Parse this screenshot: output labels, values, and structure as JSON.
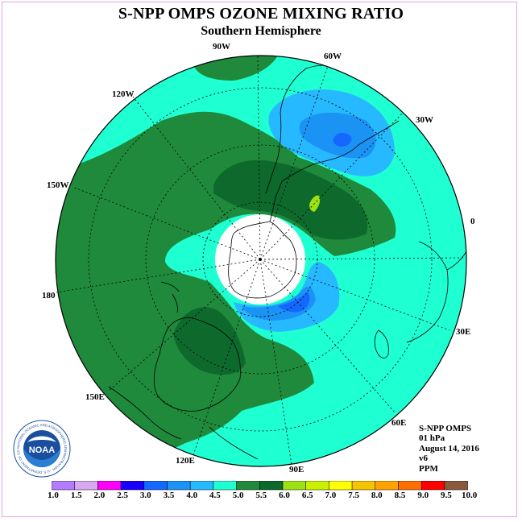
{
  "header": {
    "title": "S-NPP OMPS OZONE MIXING RATIO",
    "subtitle": "Southern Hemisphere"
  },
  "map": {
    "projection": "polar stereographic, South Pole centered",
    "longitude_labels": [
      {
        "key": "90W",
        "text": "90W"
      },
      {
        "key": "60W",
        "text": "60W"
      },
      {
        "key": "120W",
        "text": "120W"
      },
      {
        "key": "30W",
        "text": "30W"
      },
      {
        "key": "150W",
        "text": "150W"
      },
      {
        "key": "0",
        "text": "0"
      },
      {
        "key": "180",
        "text": "180"
      },
      {
        "key": "30E",
        "text": "30E"
      },
      {
        "key": "150E",
        "text": "150E"
      },
      {
        "key": "60E",
        "text": "60E"
      },
      {
        "key": "120E",
        "text": "120E"
      },
      {
        "key": "90E",
        "text": "90E"
      }
    ],
    "colors": {
      "background_field": "#1effd2",
      "level_5_0": "#1f8a3c",
      "level_5_5": "#0d6a2c",
      "level_4_0": "#27b9ff",
      "level_3_5": "#1a93f5",
      "level_3_0": "#1467ff",
      "level_6_0": "#9ce212",
      "polar_night": "#ffffff"
    }
  },
  "info": {
    "instrument": "S-NPP OMPS",
    "level": "01 hPa",
    "date": "August 14, 2016",
    "version": "v6",
    "units": "PPM"
  },
  "colorbar": {
    "labels": [
      "1.0",
      "1.5",
      "2.0",
      "2.5",
      "3.0",
      "3.5",
      "4.0",
      "4.5",
      "5.0",
      "5.5",
      "6.0",
      "6.5",
      "7.0",
      "7.5",
      "8.0",
      "8.5",
      "9.0",
      "9.5",
      "10.0"
    ],
    "colors": [
      "#b47aff",
      "#d8a8f0",
      "#ff00ff",
      "#1a00ff",
      "#1467ff",
      "#1a93f5",
      "#27b9ff",
      "#1effd2",
      "#1f8a3c",
      "#0d6a2c",
      "#9ce212",
      "#c8f000",
      "#ffff00",
      "#f5c400",
      "#ffa200",
      "#ff6e00",
      "#ff0000",
      "#8b5a3c"
    ]
  },
  "logo": {
    "text": "NOAA",
    "ring_text": "NATIONAL OCEANIC AND ATMOSPHERIC ADMINISTRATION · U.S. DEPARTMENT OF COMMERCE"
  }
}
